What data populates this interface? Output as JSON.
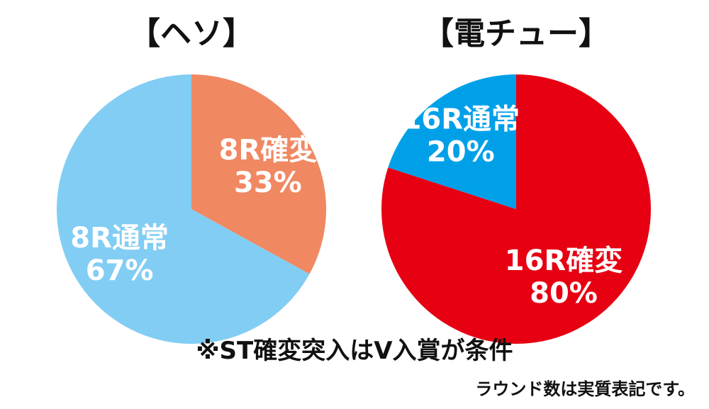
{
  "chart_data": [
    {
      "type": "pie",
      "title": "【ヘソ】",
      "slices": [
        {
          "category": "8R確変",
          "value": 33,
          "value_label": "33%",
          "color": "#F08862"
        },
        {
          "category": "8R通常",
          "value": 67,
          "value_label": "67%",
          "color": "#82CDF3"
        }
      ]
    },
    {
      "type": "pie",
      "title": "【電チュー】",
      "slices": [
        {
          "category": "16R確変",
          "value": 80,
          "value_label": "80%",
          "color": "#E60012"
        },
        {
          "category": "16R通常",
          "value": 20,
          "value_label": "20%",
          "color": "#00A0E9"
        }
      ]
    }
  ],
  "footnote": "※ST確変突入はV入賞が条件",
  "note": "ラウンド数は実質表記です。"
}
